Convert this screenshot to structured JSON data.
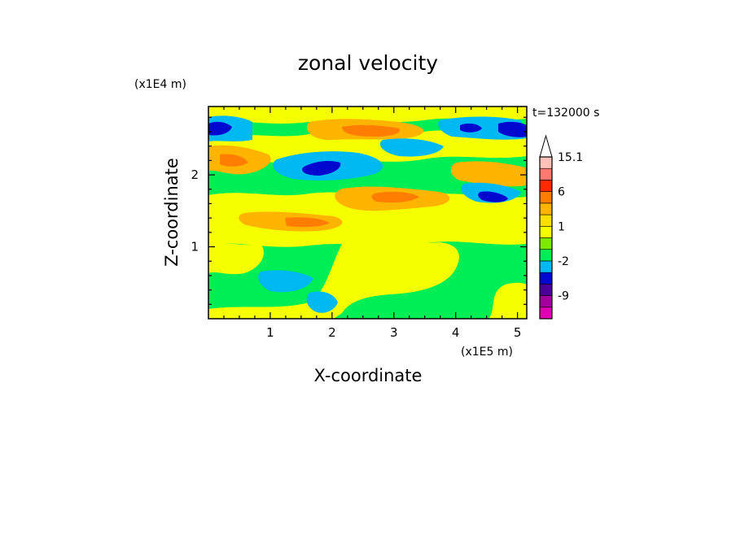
{
  "chart_data": {
    "type": "heatmap",
    "title": "zonal velocity",
    "xlabel": "X-coordinate",
    "ylabel": "Z-coordinate",
    "x_unit": "(x1E5 m)",
    "y_unit": "(x1E4 m)",
    "time_label": "t=132000 s",
    "xlim": [
      0,
      5.15
    ],
    "ylim": [
      0,
      2.95
    ],
    "x_ticks": [
      1,
      2,
      3,
      4,
      5
    ],
    "y_ticks": [
      1,
      2
    ],
    "colorbar": {
      "levels": [
        -15,
        -12,
        -9,
        -6,
        -3,
        -2,
        -1,
        0,
        1,
        2,
        3,
        6,
        9,
        12,
        15.1
      ],
      "colors": [
        "#e000b4",
        "#a3009d",
        "#4a0099",
        "#0008d0",
        "#00b8f2",
        "#00ee55",
        "#7cea00",
        "#f5ff00",
        "#ffe000",
        "#ffb400",
        "#ff7d00",
        "#ff2a00",
        "#ff7a6e",
        "#ffc1b8"
      ],
      "extend_max_color": "#ffffff",
      "tick_labels": [
        "15.1",
        "6",
        "1",
        "-2",
        "-9"
      ],
      "tick_values": [
        15.1,
        6,
        1,
        -2,
        -9
      ]
    },
    "regions": [
      {
        "name": "top-left-blue",
        "value": -5,
        "x": 0.3,
        "z": 2.65
      },
      {
        "name": "upper-left-blue-blob",
        "value": -6,
        "x": 1.75,
        "z": 2.12
      },
      {
        "name": "upper-right-blue",
        "value": -5,
        "x": 4.55,
        "z": 1.72
      },
      {
        "name": "top-right-blue",
        "value": -4.5,
        "x": 4.6,
        "z": 2.68
      },
      {
        "name": "top-orange-band",
        "value": 2.5,
        "x": 2.6,
        "z": 2.65
      },
      {
        "name": "mid-orange-band",
        "value": 2.3,
        "x": 3.0,
        "z": 1.8
      },
      {
        "name": "lower-yellow",
        "value": 0.5,
        "x": 3.2,
        "z": 0.6
      },
      {
        "name": "lower-cyan",
        "value": -1.5,
        "x": 1.2,
        "z": 0.6
      }
    ]
  }
}
